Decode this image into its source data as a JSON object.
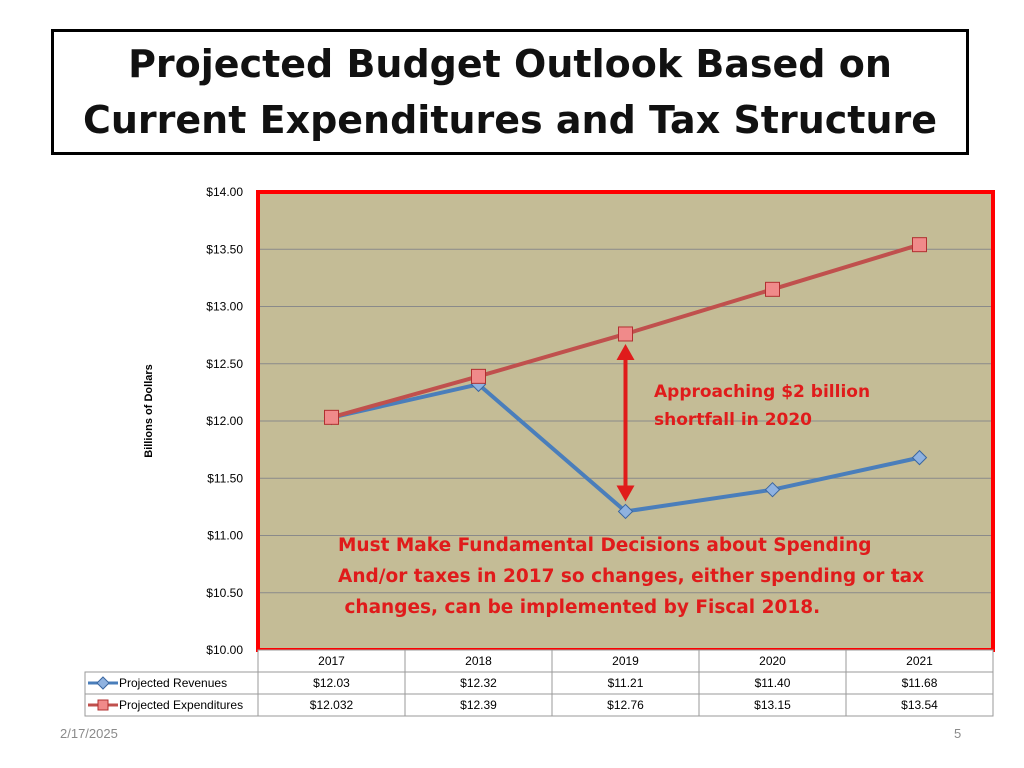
{
  "slide": {
    "title": "Projected Budget Outlook Based on\nCurrent Expenditures and Tax Structure",
    "date": "2/17/2025",
    "page_number": "5"
  },
  "chart_data": {
    "type": "line",
    "title": "",
    "xlabel": "",
    "ylabel": "Billions of Dollars",
    "categories": [
      "2017",
      "2018",
      "2019",
      "2020",
      "2021"
    ],
    "y_ticks": [
      "$14.00",
      "$13.50",
      "$13.00",
      "$12.50",
      "$12.00",
      "$11.50",
      "$11.00",
      "$10.50",
      "$10.00"
    ],
    "ylim": [
      10,
      14
    ],
    "grid": true,
    "series": [
      {
        "name": "Projected Revenues",
        "values": [
          12.03,
          12.32,
          11.21,
          11.4,
          11.68
        ],
        "table_labels": [
          "$12.03",
          "$12.32",
          "$11.21",
          "$11.40",
          "$11.68"
        ],
        "color": "#4a7ebb",
        "marker": "diamond"
      },
      {
        "name": "Projected Expenditures",
        "values": [
          12.032,
          12.39,
          12.76,
          13.15,
          13.54
        ],
        "table_labels": [
          "$12.032",
          "$12.39",
          "$12.76",
          "$13.15",
          "$13.54"
        ],
        "color": "#c0504d",
        "marker": "square"
      }
    ],
    "plot_background": "#c4bc96",
    "highlight_border_color": "#ff0000",
    "annotations": {
      "gap_year": "2019",
      "gap_text": [
        "Approaching $2 billion",
        "shortfall in 2020"
      ],
      "decision_text": [
        "Must Make Fundamental Decisions about Spending",
        "And/or taxes in 2017 so changes, either spending or tax",
        " changes, can be implemented by Fiscal 2018."
      ],
      "color": "#e01b1b"
    }
  }
}
